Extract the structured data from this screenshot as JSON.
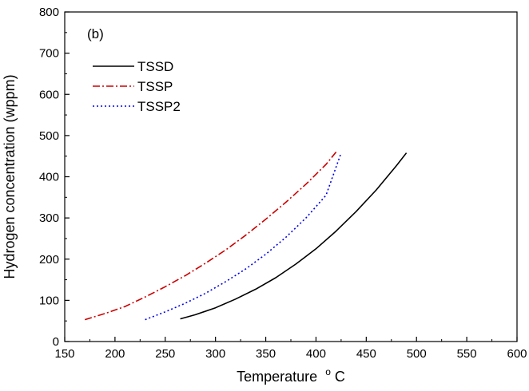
{
  "chart_data": {
    "type": "line",
    "title": "",
    "panel_label": "(b)",
    "xlabel": "Temperature",
    "xlabel_unit_sup": "o",
    "xlabel_unit": "C",
    "ylabel": "Hydrogen concentration (wppm)",
    "xlim": [
      150,
      600
    ],
    "ylim": [
      0,
      800
    ],
    "xticks": [
      150,
      200,
      250,
      300,
      350,
      400,
      450,
      500,
      550,
      600
    ],
    "yticks": [
      0,
      100,
      200,
      300,
      400,
      500,
      600,
      700,
      800
    ],
    "grid": false,
    "legend_position": "top-left",
    "series": [
      {
        "name": "TSSD",
        "color": "#000000",
        "style": "solid",
        "x": [
          265,
          280,
          300,
          320,
          340,
          360,
          380,
          400,
          420,
          440,
          460,
          480,
          490
        ],
        "y": [
          55,
          65,
          82,
          103,
          127,
          155,
          188,
          225,
          268,
          316,
          368,
          427,
          458
        ]
      },
      {
        "name": "TSSP",
        "color": "#cc0000",
        "style": "dashdot",
        "x": [
          170,
          190,
          210,
          230,
          250,
          270,
          290,
          310,
          330,
          350,
          370,
          390,
          410,
          420
        ],
        "y": [
          53,
          68,
          85,
          108,
          133,
          160,
          190,
          222,
          258,
          297,
          338,
          382,
          430,
          460
        ]
      },
      {
        "name": "TSSP2",
        "color": "#0000ee",
        "style": "dotted",
        "x": [
          230,
          250,
          270,
          290,
          310,
          330,
          350,
          370,
          390,
          410,
          425
        ],
        "y": [
          53,
          72,
          93,
          117,
          145,
          176,
          212,
          253,
          300,
          355,
          458
        ]
      }
    ]
  }
}
